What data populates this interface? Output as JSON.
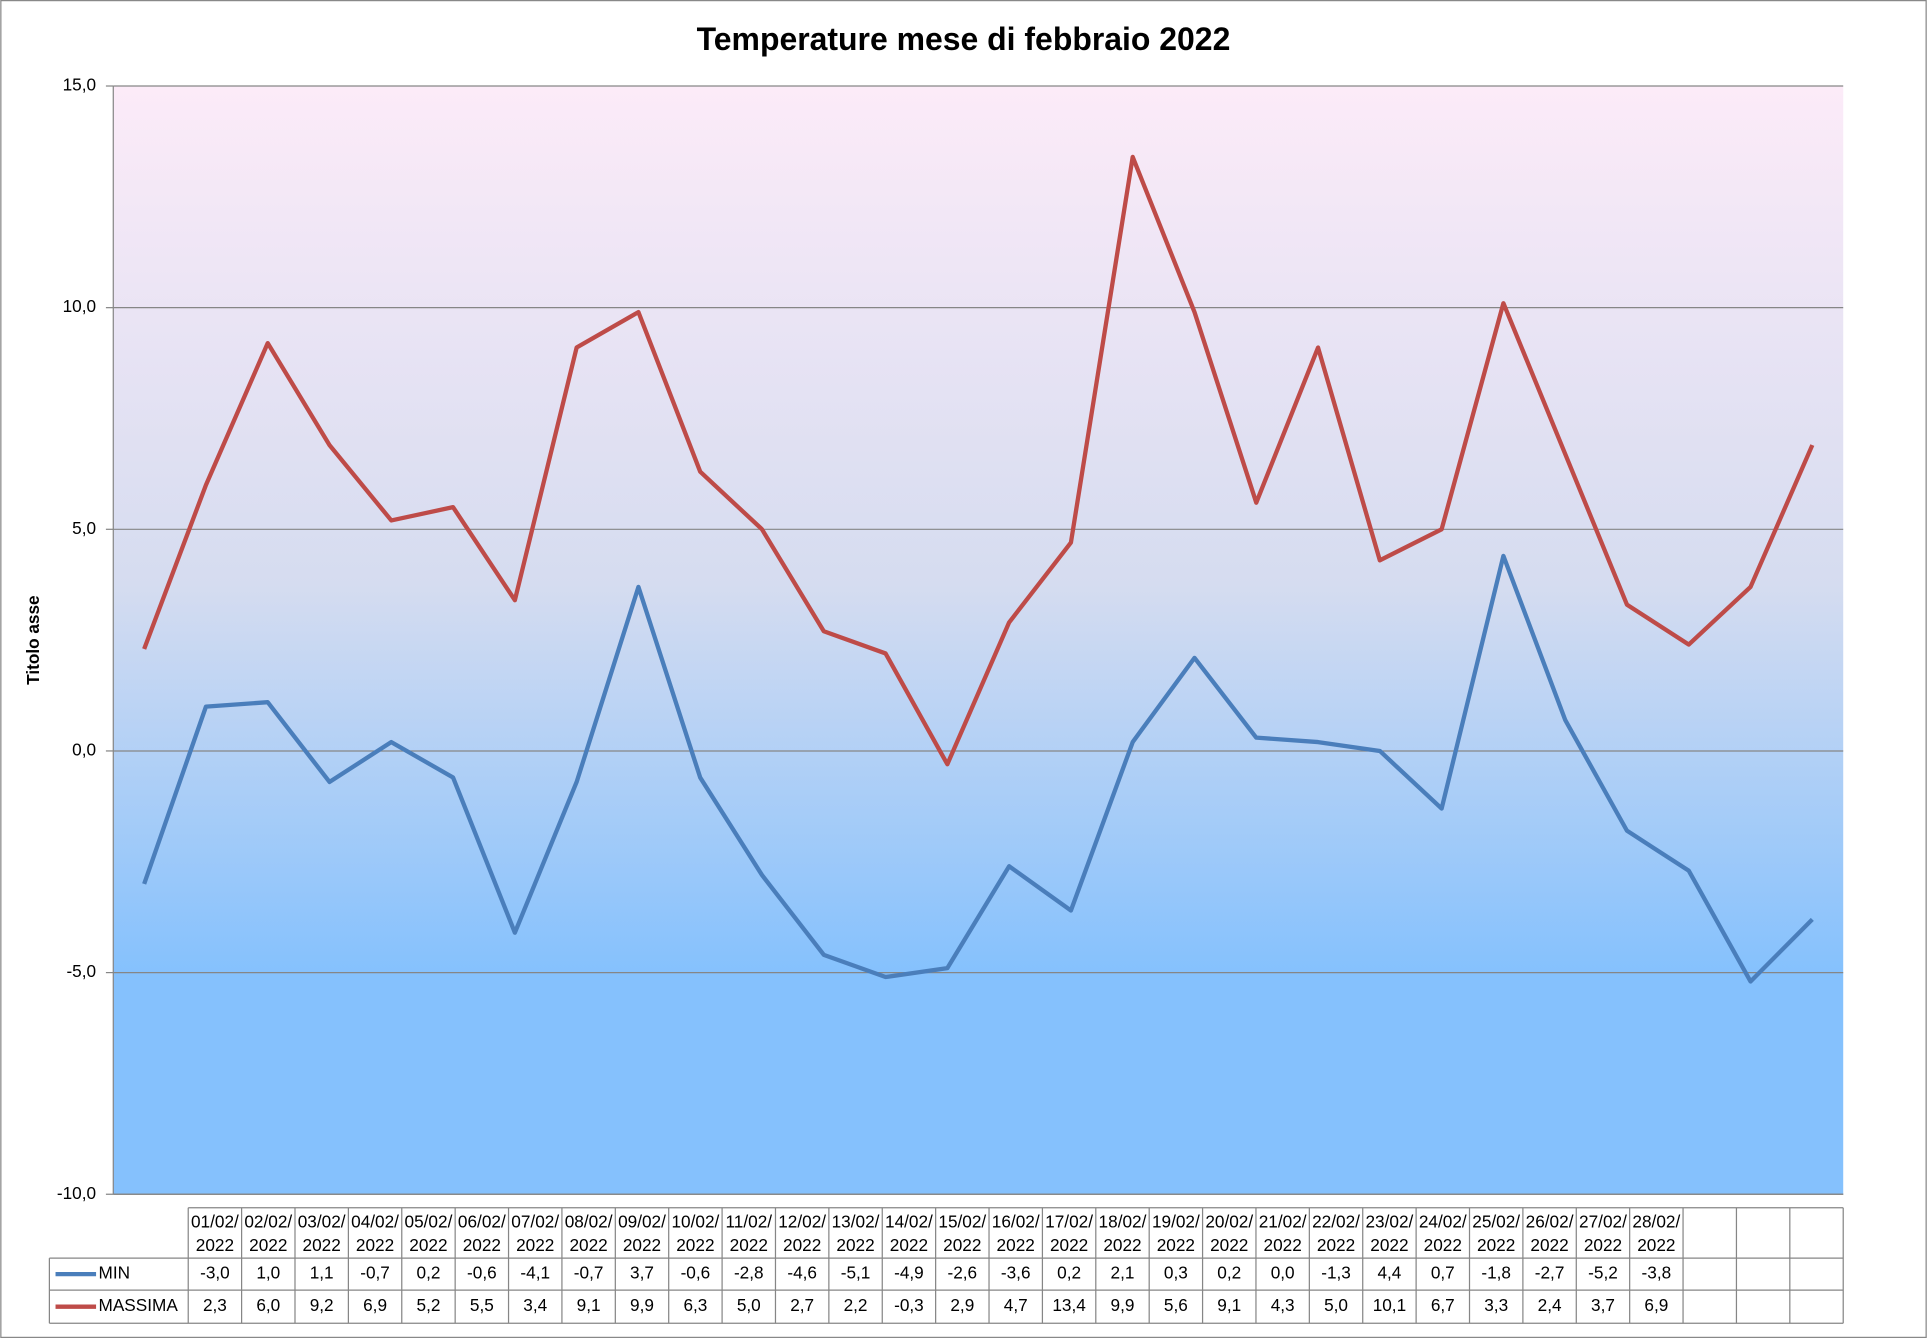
{
  "chart_data": {
    "type": "line",
    "title": "Temperature mese di febbraio 2022",
    "y_label": "Titolo asse",
    "categories": [
      "01/02/2022",
      "02/02/2022",
      "03/02/2022",
      "04/02/2022",
      "05/02/2022",
      "06/02/2022",
      "07/02/2022",
      "08/02/2022",
      "09/02/2022",
      "10/02/2022",
      "11/02/2022",
      "12/02/2022",
      "13/02/2022",
      "14/02/2022",
      "15/02/2022",
      "16/02/2022",
      "17/02/2022",
      "18/02/2022",
      "19/02/2022",
      "20/02/2022",
      "21/02/2022",
      "22/02/2022",
      "23/02/2022",
      "24/02/2022",
      "25/02/2022",
      "26/02/2022",
      "27/02/2022",
      "28/02/2022"
    ],
    "series": [
      {
        "name": "MIN",
        "color": "#4a7ebb",
        "values": [
          -3.0,
          1.0,
          1.1,
          -0.7,
          0.2,
          -0.6,
          -4.1,
          -0.7,
          3.7,
          -0.6,
          -2.8,
          -4.6,
          -5.1,
          -4.9,
          -2.6,
          -3.6,
          0.2,
          2.1,
          0.3,
          0.2,
          0.0,
          -1.3,
          4.4,
          0.7,
          -1.8,
          -2.7,
          -5.2,
          -3.8
        ],
        "value_labels": [
          "-3,0",
          "1,0",
          "1,1",
          "-0,7",
          "0,2",
          "-0,6",
          "-4,1",
          "-0,7",
          "3,7",
          "-0,6",
          "-2,8",
          "-4,6",
          "-5,1",
          "-4,9",
          "-2,6",
          "-3,6",
          "0,2",
          "2,1",
          "0,3",
          "0,2",
          "0,0",
          "-1,3",
          "4,4",
          "0,7",
          "-1,8",
          "-2,7",
          "-5,2",
          "-3,8"
        ]
      },
      {
        "name": "MASSIMA",
        "color": "#be4b48",
        "values": [
          2.3,
          6.0,
          9.2,
          6.9,
          5.2,
          5.5,
          3.4,
          9.1,
          9.9,
          6.3,
          5.0,
          2.7,
          2.2,
          -0.3,
          2.9,
          4.7,
          13.4,
          9.9,
          5.6,
          9.1,
          4.3,
          5.0,
          10.1,
          6.7,
          3.3,
          2.4,
          3.7,
          6.9
        ],
        "value_labels": [
          "2,3",
          "6,0",
          "9,2",
          "6,9",
          "5,2",
          "5,5",
          "3,4",
          "9,1",
          "9,9",
          "6,3",
          "5,0",
          "2,7",
          "2,2",
          "-0,3",
          "2,9",
          "4,7",
          "13,4",
          "9,9",
          "5,6",
          "9,1",
          "4,3",
          "5,0",
          "10,1",
          "6,7",
          "3,3",
          "2,4",
          "3,7",
          "6,9"
        ]
      }
    ],
    "ylim": [
      -10,
      15
    ],
    "yticks": [
      {
        "value": -10,
        "label": "-10,0"
      },
      {
        "value": -5,
        "label": "-5,0"
      },
      {
        "value": 0,
        "label": "0,0"
      },
      {
        "value": 5,
        "label": "5,0"
      },
      {
        "value": 10,
        "label": "10,0"
      },
      {
        "value": 15,
        "label": "15,0"
      }
    ],
    "grid": true
  }
}
